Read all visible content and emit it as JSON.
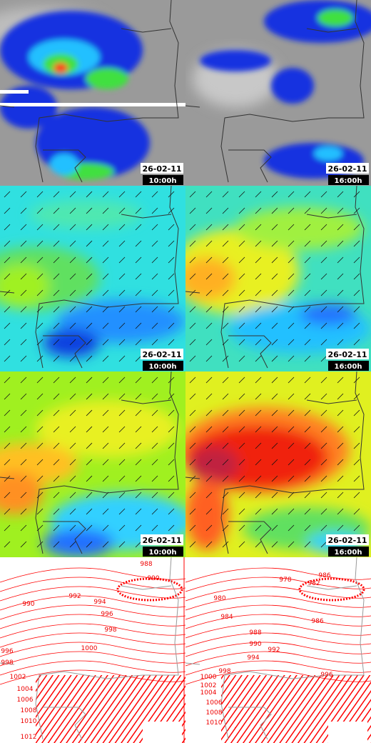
{
  "panels": [
    {
      "date": "26-02-11",
      "time": "10:00h"
    },
    {
      "date": "26-02-11",
      "time": "16:00h"
    },
    {
      "date": "26-02-11",
      "time": "10:00h"
    },
    {
      "date": "26-02-11",
      "time": "16:00h"
    },
    {
      "date": "26-02-11",
      "time": "10:00h"
    },
    {
      "date": "26-02-11",
      "time": "16:00h"
    }
  ],
  "pressure_maps": [
    {
      "labels": [
        "988",
        "990",
        "992",
        "990",
        "994",
        "996",
        "998",
        "1000",
        "996",
        "998",
        "1002",
        "1004",
        "1006",
        "1008",
        "1010",
        "1012"
      ]
    },
    {
      "labels": [
        "986",
        "978",
        "980",
        "982",
        "984",
        "986",
        "988",
        "990",
        "992",
        "994",
        "996",
        "998",
        "1000",
        "1002",
        "1004",
        "1006",
        "1008",
        "1010"
      ]
    }
  ]
}
